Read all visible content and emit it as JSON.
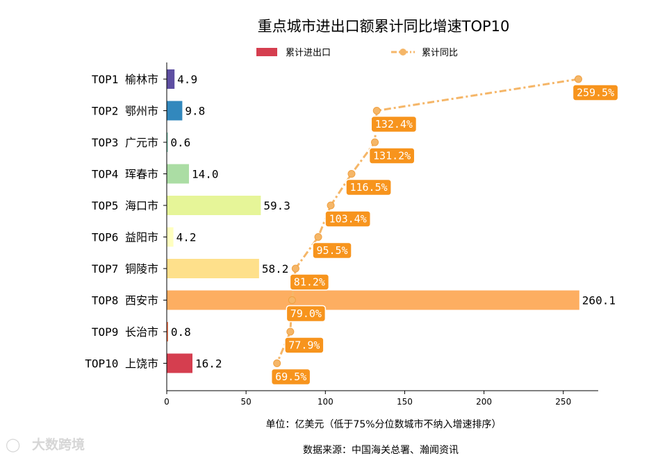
{
  "chart_data": {
    "type": "bar",
    "orientation": "horizontal",
    "title": "重点城市进出口额累计同比增速TOP10",
    "categories": [
      "TOP1 榆林市",
      "TOP2 鄂州市",
      "TOP3 广元市",
      "TOP4 珲春市",
      "TOP5 海口市",
      "TOP6 益阳市",
      "TOP7 铜陵市",
      "TOP8 西安市",
      "TOP9 长治市",
      "TOP10 上饶市"
    ],
    "series": [
      {
        "name": "累计进出口",
        "type": "bar",
        "values": [
          4.9,
          9.8,
          0.6,
          14.0,
          59.3,
          4.2,
          58.2,
          260.1,
          0.8,
          16.2
        ],
        "labels": [
          "4.9",
          "9.8",
          "0.6",
          "14.0",
          "59.3",
          "4.2",
          "58.2",
          "260.1",
          "0.8",
          "16.2"
        ],
        "colors": [
          "#5e4fa2",
          "#3288bd",
          "#66c2a5",
          "#abdda4",
          "#e6f598",
          "#ffffbf",
          "#fee08b",
          "#fdae61",
          "#f46d43",
          "#d53e4f"
        ]
      },
      {
        "name": "累计同比",
        "type": "line",
        "values": [
          259.5,
          132.4,
          131.2,
          116.5,
          103.4,
          95.5,
          81.2,
          79.0,
          77.9,
          69.5
        ],
        "labels": [
          "259.5%",
          "132.4%",
          "131.2%",
          "116.5%",
          "103.4%",
          "95.5%",
          "81.2%",
          "79.0%",
          "77.9%",
          "69.5%"
        ],
        "color": "#f5b668",
        "label_color": "#f7941d"
      }
    ],
    "xlim": [
      0,
      272
    ],
    "xticks": [
      0,
      50,
      100,
      150,
      200,
      250
    ],
    "xtick_labels": [
      "0",
      "50",
      "100",
      "150",
      "200",
      "250"
    ],
    "xlabel": "单位：亿美元（低于75%分位数城市不纳入增速排序）",
    "source": "数据来源：中国海关总署、瀚闻资讯",
    "legend_position": "top-center",
    "grid": false
  },
  "watermark": "大数跨境",
  "colors": {
    "axis": "#000000",
    "line": "#f5b668",
    "label_box": "#f7941d"
  }
}
